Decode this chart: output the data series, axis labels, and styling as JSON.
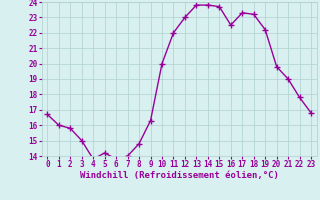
{
  "hours": [
    0,
    1,
    2,
    3,
    4,
    5,
    6,
    7,
    8,
    9,
    10,
    11,
    12,
    13,
    14,
    15,
    16,
    17,
    18,
    19,
    20,
    21,
    22,
    23
  ],
  "values": [
    16.7,
    16.0,
    15.8,
    15.0,
    13.8,
    14.2,
    13.8,
    14.0,
    14.8,
    16.3,
    20.0,
    22.0,
    23.0,
    23.8,
    23.8,
    23.7,
    22.5,
    23.3,
    23.2,
    22.2,
    19.8,
    19.0,
    17.8,
    16.8
  ],
  "line_color": "#990099",
  "marker": "+",
  "marker_size": 4,
  "marker_lw": 1.0,
  "bg_color": "#d8f0f0",
  "grid_color": "#b0d0d0",
  "xlabel": "Windchill (Refroidissement éolien,°C)",
  "xlabel_color": "#990099",
  "ylim": [
    14,
    24
  ],
  "yticks": [
    14,
    15,
    16,
    17,
    18,
    19,
    20,
    21,
    22,
    23,
    24
  ],
  "xticks": [
    0,
    1,
    2,
    3,
    4,
    5,
    6,
    7,
    8,
    9,
    10,
    11,
    12,
    13,
    14,
    15,
    16,
    17,
    18,
    19,
    20,
    21,
    22,
    23
  ],
  "tick_label_size": 5.5,
  "xlabel_size": 6.5,
  "line_width": 1.0
}
